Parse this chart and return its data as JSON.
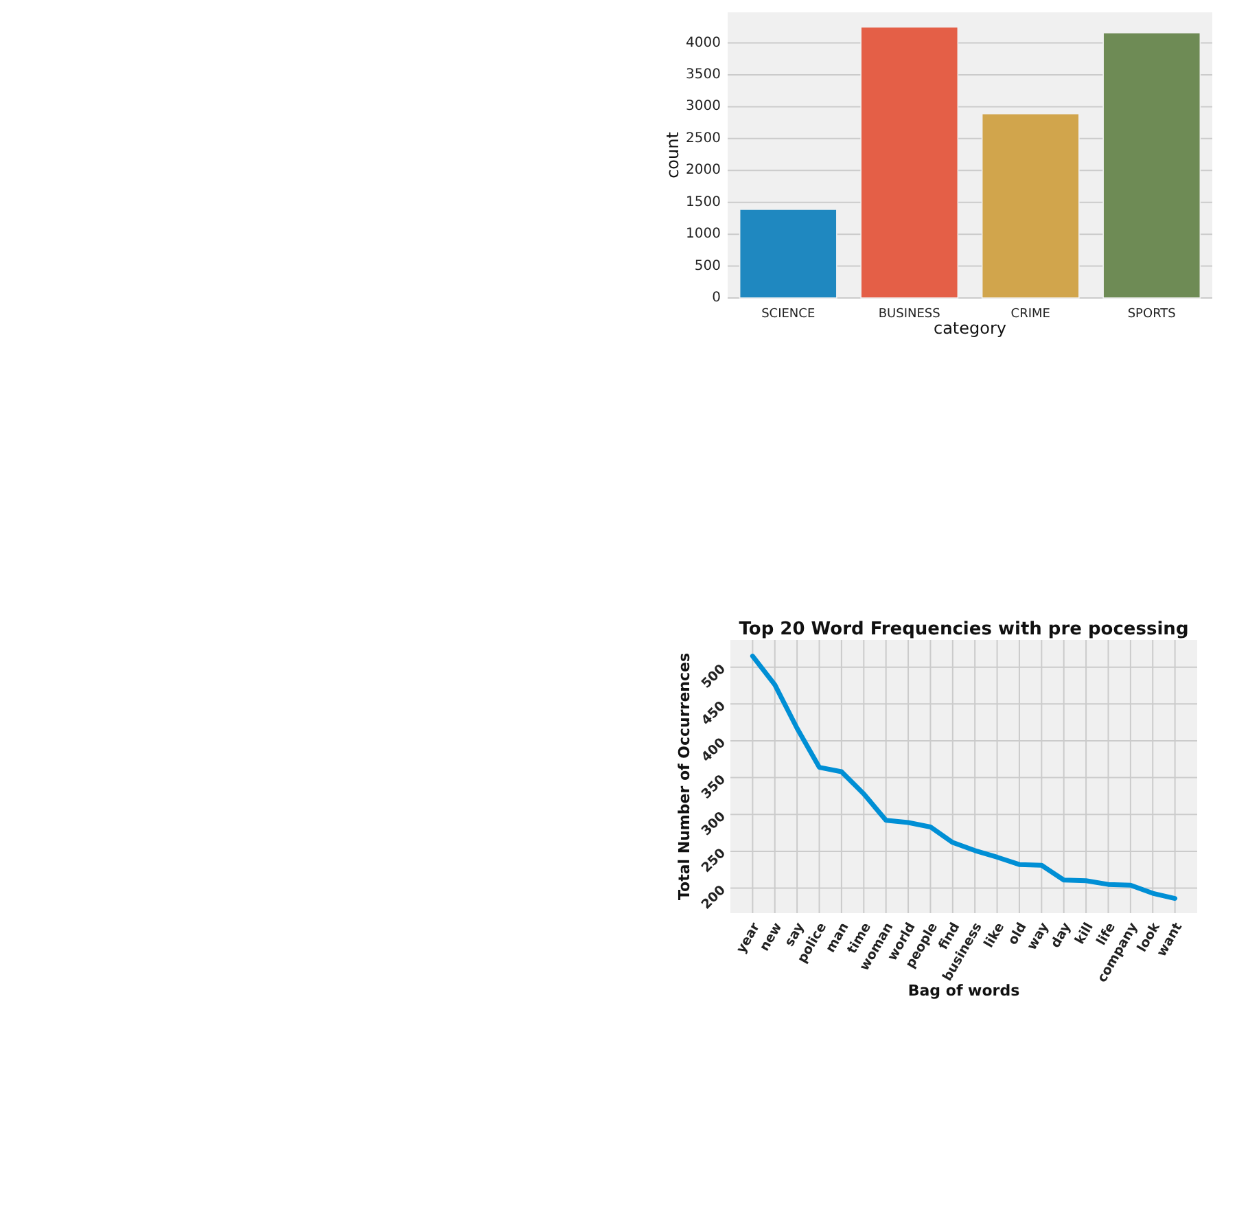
{
  "chart_data": [
    {
      "type": "bar",
      "xlabel": "category",
      "ylabel": "count",
      "categories": [
        "SCIENCE",
        "BUSINESS",
        "CRIME",
        "SPORTS"
      ],
      "values": [
        1390,
        4250,
        2890,
        4160
      ],
      "colors": [
        "#1f88c0",
        "#e45f47",
        "#d1a54c",
        "#6e8b55"
      ],
      "ylim": [
        0,
        4480
      ],
      "yticks": [
        0,
        500,
        1000,
        1500,
        2000,
        2500,
        3000,
        3500,
        4000
      ],
      "grid": "y"
    },
    {
      "type": "line",
      "title": "Top 20 Word Frequencies with pre pocessing",
      "xlabel": "Bag of words",
      "ylabel": "Total Number of Occurrences",
      "categories": [
        "year",
        "new",
        "say",
        "police",
        "man",
        "time",
        "woman",
        "world",
        "people",
        "find",
        "business",
        "like",
        "old",
        "way",
        "day",
        "kill",
        "life",
        "company",
        "look",
        "want"
      ],
      "series": [
        {
          "color": "#008fd5",
          "values": [
            515,
            476,
            417,
            364,
            358,
            328,
            292,
            289,
            283,
            262,
            251,
            242,
            232,
            231,
            211,
            210,
            205,
            204,
            193,
            186
          ]
        }
      ],
      "ylim": [
        166,
        537
      ],
      "yticks": [
        200,
        250,
        300,
        350,
        400,
        450,
        500
      ],
      "grid": true,
      "marker": "none",
      "line_style": "solid"
    }
  ]
}
